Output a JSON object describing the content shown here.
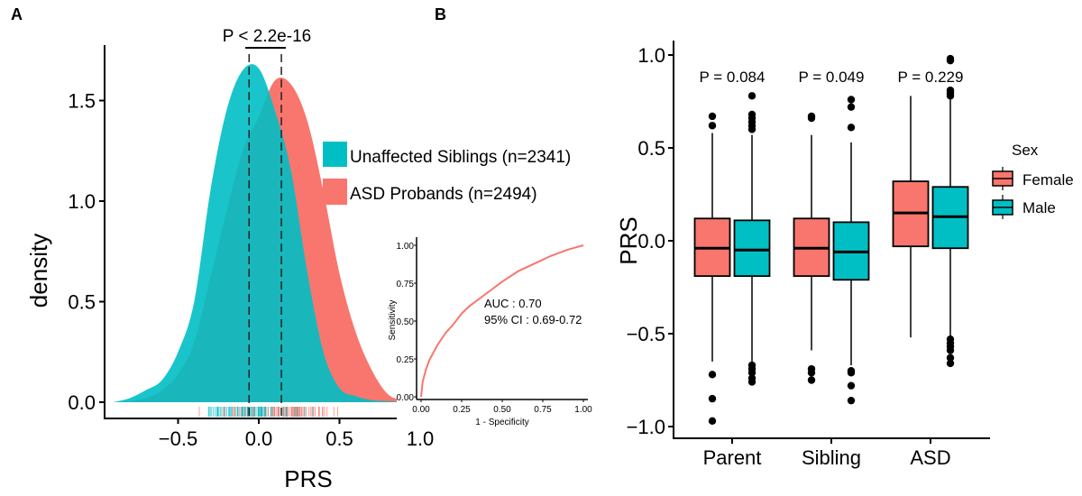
{
  "chart_data": [
    {
      "panel": "A",
      "type": "area",
      "xlabel": "PRS",
      "ylabel": "density",
      "xticks": [
        "-0.5",
        "0.0",
        "0.5",
        "1.0"
      ],
      "yticks": [
        "0.0",
        "0.5",
        "1.0",
        "1.5"
      ],
      "xlim": [
        -0.92,
        1.0
      ],
      "ylim": [
        0,
        1.72
      ],
      "annotation": "P < 2.2e-16",
      "legend_position": "right",
      "x": [
        -0.9,
        -0.8,
        -0.7,
        -0.6,
        -0.5,
        -0.4,
        -0.3,
        -0.2,
        -0.1,
        0.0,
        0.1,
        0.2,
        0.3,
        0.4,
        0.5,
        0.6,
        0.7,
        0.8,
        0.9,
        1.0
      ],
      "series": [
        {
          "name": "ASD Probands (n=2494)",
          "color": "#F8766D",
          "mean_line": 0.14,
          "values": [
            0,
            0.005,
            0.02,
            0.06,
            0.14,
            0.3,
            0.62,
            0.95,
            1.25,
            1.42,
            1.6,
            1.58,
            1.4,
            1.05,
            0.64,
            0.35,
            0.16,
            0.04,
            0.01,
            0
          ]
        },
        {
          "name": "Unaffected Siblings (n=2341)",
          "color": "#00BFC4",
          "mean_line": -0.06,
          "values": [
            0,
            0.02,
            0.06,
            0.11,
            0.25,
            0.5,
            1.05,
            1.45,
            1.65,
            1.66,
            1.45,
            1.15,
            0.65,
            0.25,
            0.07,
            0.03,
            0.01,
            0.005,
            0,
            0
          ]
        }
      ],
      "rug": true
    },
    {
      "panel": "A-inset",
      "type": "line",
      "xlabel": "1 - Specificity",
      "ylabel": "Sensitivity",
      "xticks": [
        "0.00",
        "0.25",
        "0.50",
        "0.75",
        "1.00"
      ],
      "yticks": [
        "0.00",
        "0.25",
        "0.50",
        "0.75",
        "1.00"
      ],
      "xlim": [
        0,
        1
      ],
      "ylim": [
        0,
        1
      ],
      "annotations": [
        "AUC : 0.70",
        "95% CI : 0.69-0.72"
      ],
      "color": "#F8766D",
      "x": [
        0,
        0.01,
        0.03,
        0.05,
        0.1,
        0.15,
        0.2,
        0.25,
        0.3,
        0.4,
        0.5,
        0.6,
        0.7,
        0.8,
        0.9,
        1.0
      ],
      "y": [
        0,
        0.1,
        0.18,
        0.24,
        0.34,
        0.42,
        0.48,
        0.55,
        0.6,
        0.68,
        0.76,
        0.83,
        0.88,
        0.93,
        0.97,
        1.0
      ]
    },
    {
      "panel": "B",
      "type": "box",
      "ylabel": "PRS",
      "categories": [
        "Parent",
        "Sibling",
        "ASD"
      ],
      "yticks": [
        "-1.0",
        "-0.5",
        "0.0",
        "0.5",
        "1.0"
      ],
      "ylim": [
        -1.02,
        1.05
      ],
      "pvalues": [
        "P = 0.084",
        "P = 0.049",
        "P = 0.229"
      ],
      "legend": {
        "title": "Sex",
        "entries": [
          "Female",
          "Male"
        ],
        "position": "right"
      },
      "series": [
        {
          "name": "Female",
          "color": "#F8766D",
          "boxes": [
            {
              "q1": -0.19,
              "median": -0.04,
              "q3": 0.12,
              "whisker_low": -0.65,
              "whisker_high": 0.58,
              "outliers": [
                0.67,
                0.62,
                -0.72,
                -0.85,
                -0.97
              ]
            },
            {
              "q1": -0.19,
              "median": -0.04,
              "q3": 0.12,
              "whisker_low": -0.59,
              "whisker_high": 0.57,
              "outliers": [
                0.67,
                0.66,
                -0.69,
                -0.71,
                -0.75
              ]
            },
            {
              "q1": -0.03,
              "median": 0.15,
              "q3": 0.32,
              "whisker_low": -0.52,
              "whisker_high": 0.78,
              "outliers": []
            }
          ]
        },
        {
          "name": "Male",
          "color": "#00BFC4",
          "boxes": [
            {
              "q1": -0.19,
              "median": -0.05,
              "q3": 0.11,
              "whisker_low": -0.65,
              "whisker_high": 0.57,
              "outliers": [
                0.78,
                0.68,
                0.66,
                0.64,
                0.62,
                0.6,
                -0.67,
                -0.69,
                -0.71,
                -0.74,
                -0.76
              ]
            },
            {
              "q1": -0.21,
              "median": -0.06,
              "q3": 0.1,
              "whisker_low": -0.67,
              "whisker_high": 0.53,
              "outliers": [
                0.76,
                0.72,
                0.61,
                -0.7,
                -0.71,
                -0.78,
                -0.86
              ]
            },
            {
              "q1": -0.04,
              "median": 0.13,
              "q3": 0.29,
              "whisker_low": -0.52,
              "whisker_high": 0.77,
              "outliers": [
                0.98,
                0.97,
                0.81,
                0.8,
                0.79,
                0.78,
                -0.53,
                -0.55,
                -0.57,
                -0.59,
                -0.63,
                -0.66
              ]
            }
          ]
        }
      ]
    }
  ],
  "panel_labels": [
    "A",
    "B"
  ]
}
